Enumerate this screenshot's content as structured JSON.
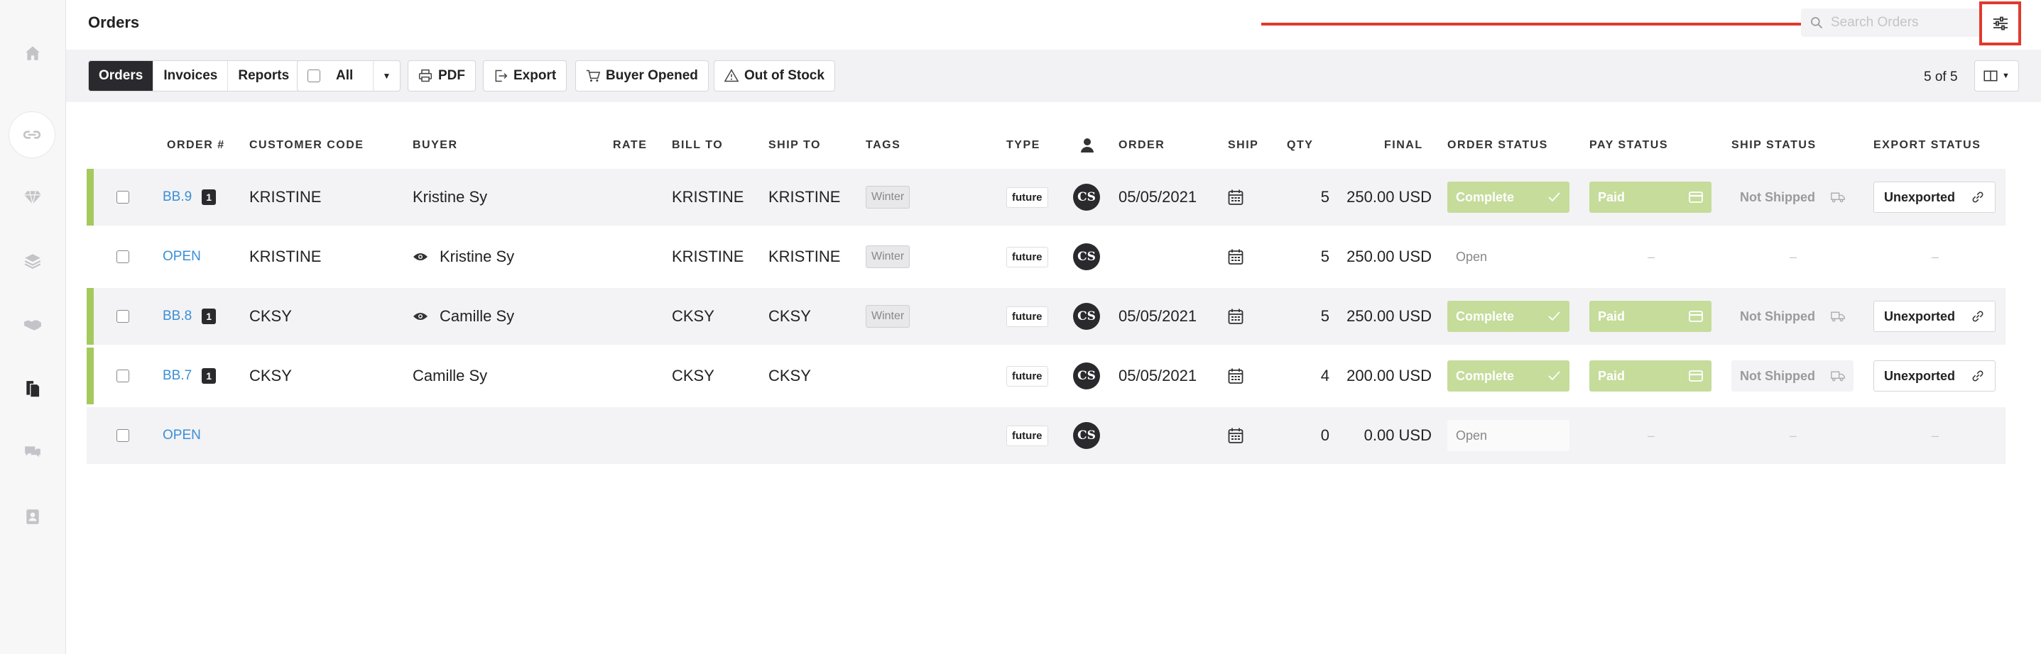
{
  "header": {
    "title": "Orders",
    "search_placeholder": "Search Orders"
  },
  "toolbar": {
    "tabs": [
      "Orders",
      "Invoices",
      "Reports"
    ],
    "all_label": "All",
    "pdf_label": "PDF",
    "export_label": "Export",
    "buyer_opened_label": "Buyer Opened",
    "out_of_stock_label": "Out of Stock",
    "pager": "5 of 5"
  },
  "columns": [
    "ORDER #",
    "CUSTOMER CODE",
    "BUYER",
    "RATE",
    "BILL TO",
    "SHIP TO",
    "TAGS",
    "TYPE",
    "ORDER",
    "SHIP",
    "QTY",
    "FINAL",
    "ORDER STATUS",
    "PAY STATUS",
    "SHIP STATUS",
    "EXPORT STATUS"
  ],
  "rows": [
    {
      "order": "BB.9",
      "count": "1",
      "customer": "KRISTINE",
      "buyer": "Kristine Sy",
      "bill_to": "KRISTINE",
      "ship_to": "KRISTINE",
      "tag": "Winter",
      "type": "future",
      "avatar": "CS",
      "order_date": "05/05/2021",
      "qty": "5",
      "final": "250.00 USD",
      "order_status": "Complete",
      "pay_status": "Paid",
      "ship_status": "Not Shipped",
      "export_status": "Unexported",
      "dash": "–"
    },
    {
      "order": "OPEN",
      "count": "",
      "customer": "KRISTINE",
      "buyer": "Kristine Sy",
      "bill_to": "KRISTINE",
      "ship_to": "KRISTINE",
      "tag": "Winter",
      "type": "future",
      "avatar": "CS",
      "order_date": "",
      "qty": "5",
      "final": "250.00 USD",
      "order_status": "Open",
      "pay_status": "",
      "ship_status": "",
      "export_status": "",
      "dash": "–"
    },
    {
      "order": "BB.8",
      "count": "1",
      "customer": "CKSY",
      "buyer": "Camille Sy",
      "bill_to": "CKSY",
      "ship_to": "CKSY",
      "tag": "Winter",
      "type": "future",
      "avatar": "CS",
      "order_date": "05/05/2021",
      "qty": "5",
      "final": "250.00 USD",
      "order_status": "Complete",
      "pay_status": "Paid",
      "ship_status": "Not Shipped",
      "export_status": "Unexported",
      "dash": "–"
    },
    {
      "order": "BB.7",
      "count": "1",
      "customer": "CKSY",
      "buyer": "Camille Sy",
      "bill_to": "CKSY",
      "ship_to": "CKSY",
      "tag": "",
      "type": "future",
      "avatar": "CS",
      "order_date": "05/05/2021",
      "qty": "4",
      "final": "200.00 USD",
      "order_status": "Complete",
      "pay_status": "Paid",
      "ship_status": "Not Shipped",
      "export_status": "Unexported",
      "dash": "–"
    },
    {
      "order": "OPEN",
      "count": "",
      "customer": "",
      "buyer": "",
      "bill_to": "",
      "ship_to": "",
      "tag": "",
      "type": "future",
      "avatar": "CS",
      "order_date": "",
      "qty": "0",
      "final": "0.00 USD",
      "order_status": "Open",
      "pay_status": "",
      "ship_status": "",
      "export_status": "",
      "dash": "–"
    }
  ]
}
